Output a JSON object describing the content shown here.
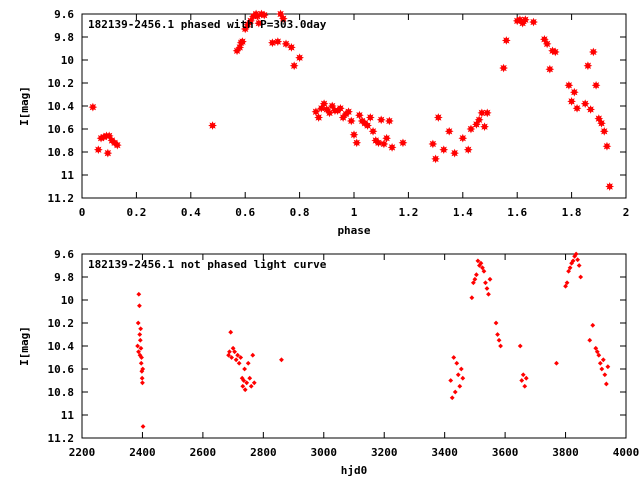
{
  "chart_data": [
    {
      "type": "scatter",
      "title": "182139-2456.1 phased with P=303.0day",
      "xlabel": "phase",
      "ylabel": "I[mag]",
      "xlim": [
        0,
        2
      ],
      "ylim": [
        11.2,
        9.6
      ],
      "y_inverted": true,
      "grid": false,
      "xticks": [
        "0",
        "0.2",
        "0.4",
        "0.6",
        "0.8",
        "1",
        "1.2",
        "1.4",
        "1.6",
        "1.8",
        "2"
      ],
      "yticks": [
        "9.6",
        "9.8",
        "10",
        "10.2",
        "10.4",
        "10.6",
        "10.8",
        "11",
        "11.2"
      ],
      "marker": "star",
      "color": "#ff0000",
      "series": [
        {
          "x": [
            0.04,
            0.06,
            0.07,
            0.08,
            0.09,
            0.095,
            0.1,
            0.11,
            0.12,
            0.13,
            0.48,
            0.57,
            0.58,
            0.585,
            0.59,
            0.6,
            0.61,
            0.62,
            0.63,
            0.64,
            0.645,
            0.65,
            0.66,
            0.67,
            0.7,
            0.72,
            0.73,
            0.74,
            0.75,
            0.77,
            0.78,
            0.8,
            0.86,
            0.87,
            0.88,
            0.89,
            0.9,
            0.91,
            0.92,
            0.93,
            0.94,
            0.95,
            0.96,
            0.97,
            0.98,
            0.99,
            1.0,
            1.01,
            1.02,
            1.03,
            1.04,
            1.05,
            1.06,
            1.07,
            1.08,
            1.09,
            1.1,
            1.11,
            1.12,
            1.13,
            1.14,
            1.18,
            1.29,
            1.3,
            1.31,
            1.33,
            1.35,
            1.37,
            1.4,
            1.42,
            1.43,
            1.45,
            1.46,
            1.47,
            1.48,
            1.49,
            1.55,
            1.56,
            1.6,
            1.61,
            1.62,
            1.63,
            1.66,
            1.7,
            1.71,
            1.72,
            1.73,
            1.74,
            1.79,
            1.8,
            1.81,
            1.82,
            1.85,
            1.86,
            1.87,
            1.88,
            1.89,
            1.9,
            1.91,
            1.92,
            1.93,
            1.94
          ],
          "y": [
            10.41,
            10.78,
            10.68,
            10.67,
            10.66,
            10.81,
            10.66,
            10.7,
            10.72,
            10.74,
            10.57,
            9.92,
            9.89,
            9.85,
            9.84,
            9.73,
            9.69,
            9.66,
            9.62,
            9.6,
            9.62,
            9.68,
            9.6,
            9.61,
            9.85,
            9.84,
            9.6,
            9.64,
            9.86,
            9.89,
            10.05,
            9.98,
            10.45,
            10.5,
            10.42,
            10.38,
            10.43,
            10.46,
            10.4,
            10.44,
            10.44,
            10.42,
            10.5,
            10.47,
            10.45,
            10.53,
            10.65,
            10.72,
            10.48,
            10.53,
            10.55,
            10.57,
            10.5,
            10.62,
            10.7,
            10.72,
            10.52,
            10.73,
            10.68,
            10.53,
            10.76,
            10.72,
            10.73,
            10.86,
            10.5,
            10.78,
            10.62,
            10.81,
            10.68,
            10.78,
            10.6,
            10.56,
            10.52,
            10.46,
            10.58,
            10.46,
            10.07,
            9.83,
            9.66,
            9.65,
            9.68,
            9.65,
            9.67,
            9.82,
            9.86,
            10.08,
            9.92,
            9.93,
            10.22,
            10.36,
            10.28,
            10.42,
            10.38,
            10.05,
            10.43,
            9.93,
            10.22,
            10.51,
            10.55,
            10.62,
            10.75,
            11.1
          ]
        }
      ]
    },
    {
      "type": "scatter",
      "title": "182139-2456.1 not phased light curve",
      "xlabel": "hjd0",
      "ylabel": "I[mag]",
      "xlim": [
        2200,
        4000
      ],
      "ylim": [
        11.2,
        9.6
      ],
      "y_inverted": true,
      "grid": false,
      "xticks": [
        "2200",
        "2400",
        "2600",
        "2800",
        "3000",
        "3200",
        "3400",
        "3600",
        "3800",
        "4000"
      ],
      "yticks": [
        "9.6",
        "9.8",
        "10",
        "10.2",
        "10.4",
        "10.6",
        "10.8",
        "11",
        "11.2"
      ],
      "marker": "diamond",
      "color": "#ff0000",
      "series": [
        {
          "x": [
            2384,
            2386,
            2387,
            2388,
            2390,
            2391,
            2392,
            2393,
            2394,
            2395,
            2396,
            2397,
            2398,
            2399,
            2400,
            2401,
            2402,
            2685,
            2688,
            2692,
            2695,
            2700,
            2705,
            2710,
            2715,
            2720,
            2725,
            2730,
            2732,
            2735,
            2738,
            2740,
            2745,
            2750,
            2755,
            2760,
            2765,
            2770,
            2860,
            3420,
            3425,
            3430,
            3435,
            3440,
            3445,
            3450,
            3455,
            3460,
            3490,
            3495,
            3500,
            3505,
            3510,
            3515,
            3520,
            3525,
            3530,
            3535,
            3540,
            3545,
            3550,
            3570,
            3575,
            3580,
            3585,
            3650,
            3655,
            3660,
            3665,
            3670,
            3770,
            3800,
            3805,
            3810,
            3815,
            3820,
            3825,
            3830,
            3835,
            3840,
            3845,
            3850,
            3880,
            3890,
            3900,
            3905,
            3910,
            3915,
            3920,
            3925,
            3930,
            3935,
            3940
          ],
          "y": [
            10.4,
            10.2,
            10.45,
            9.95,
            10.05,
            10.3,
            10.48,
            10.35,
            10.25,
            10.42,
            10.55,
            10.5,
            10.62,
            10.68,
            10.72,
            10.6,
            11.1,
            10.48,
            10.45,
            10.28,
            10.5,
            10.42,
            10.45,
            10.52,
            10.48,
            10.55,
            10.5,
            10.68,
            10.75,
            10.7,
            10.6,
            10.78,
            10.72,
            10.55,
            10.68,
            10.75,
            10.48,
            10.72,
            10.52,
            10.7,
            10.85,
            10.5,
            10.8,
            10.55,
            10.65,
            10.75,
            10.6,
            10.68,
            9.98,
            9.85,
            9.82,
            9.78,
            9.66,
            9.7,
            9.68,
            9.72,
            9.75,
            9.85,
            9.9,
            9.95,
            9.82,
            10.2,
            10.3,
            10.35,
            10.4,
            10.4,
            10.7,
            10.65,
            10.75,
            10.68,
            10.55,
            9.88,
            9.85,
            9.75,
            9.72,
            9.68,
            9.66,
            9.62,
            9.6,
            9.65,
            9.7,
            9.8,
            10.35,
            10.22,
            10.42,
            10.45,
            10.48,
            10.55,
            10.6,
            10.52,
            10.65,
            10.73,
            10.58
          ]
        }
      ]
    }
  ]
}
